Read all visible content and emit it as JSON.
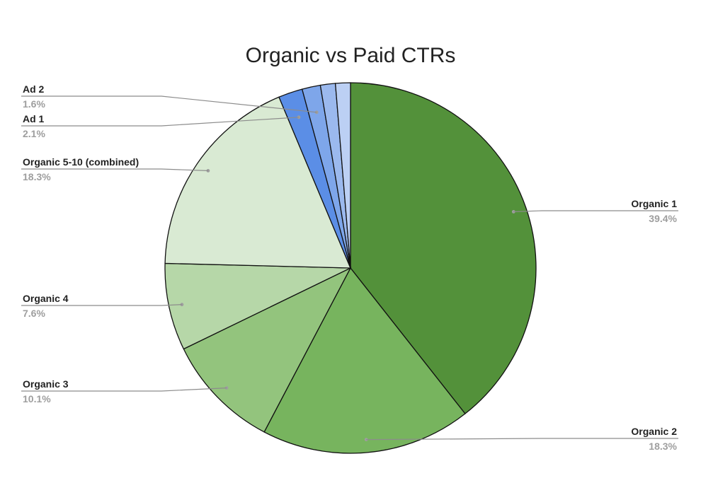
{
  "chart_data": {
    "type": "pie",
    "title": "Organic vs Paid CTRs",
    "slices": [
      {
        "label": "Organic 1",
        "value": 39.4,
        "value_label": "39.4%",
        "color": "#53913a"
      },
      {
        "label": "Organic 2",
        "value": 18.3,
        "value_label": "18.3%",
        "color": "#77b45e"
      },
      {
        "label": "Organic 3",
        "value": 10.1,
        "value_label": "10.1%",
        "color": "#93c47d"
      },
      {
        "label": "Organic 4",
        "value": 7.6,
        "value_label": "7.6%",
        "color": "#b6d7a8"
      },
      {
        "label": "Organic 5-10 (combined)",
        "value": 18.3,
        "value_label": "18.3%",
        "color": "#d9ead3"
      },
      {
        "label": "Ad 1",
        "value": 2.1,
        "value_label": "2.1%",
        "color": "#5b8ee6"
      },
      {
        "label": "Ad 2",
        "value": 1.6,
        "value_label": "1.6%",
        "color": "#7ea6ea"
      },
      {
        "label": "",
        "value": 1.3,
        "value_label": "",
        "color": "#9bb9ee"
      },
      {
        "label": "",
        "value": 1.3,
        "value_label": "",
        "color": "#bcd0f4"
      }
    ]
  }
}
